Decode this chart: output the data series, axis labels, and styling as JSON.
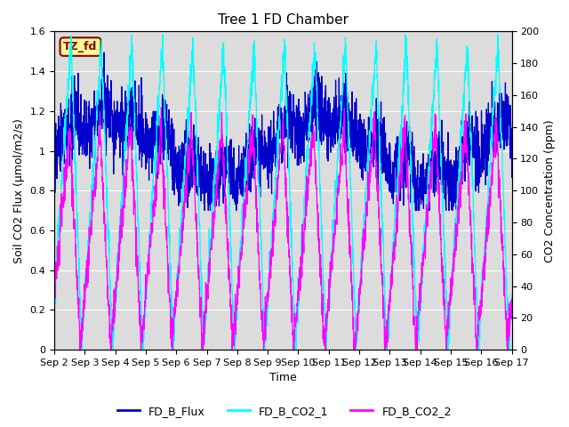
{
  "title": "Tree 1 FD Chamber",
  "xlabel": "Time",
  "ylabel_left": "Soil CO2 Flux (μmol/m2/s)",
  "ylabel_right": "CO2 Concentration (ppm)",
  "ylim_left": [
    0,
    1.6
  ],
  "ylim_right": [
    0,
    200
  ],
  "yticks_left": [
    0.0,
    0.2,
    0.4,
    0.6,
    0.8,
    1.0,
    1.2,
    1.4,
    1.6
  ],
  "yticks_right": [
    0,
    20,
    40,
    60,
    80,
    100,
    120,
    140,
    160,
    180,
    200
  ],
  "xticklabels": [
    "Sep 2",
    "Sep 3",
    "Sep 4",
    "Sep 5",
    "Sep 6",
    "Sep 7",
    "Sep 8",
    "Sep 9",
    "Sep 10",
    "Sep 11",
    "Sep 12",
    "Sep 13",
    "Sep 14",
    "Sep 15",
    "Sep 16",
    "Sep 17"
  ],
  "flux_color": "#0000CC",
  "co2_1_color": "#00FFFF",
  "co2_2_color": "#FF00FF",
  "bg_color": "#DCDCDC",
  "fig_bg_color": "#FFFFFF",
  "legend_labels": [
    "FD_B_Flux",
    "FD_B_CO2_1",
    "FD_B_CO2_2"
  ],
  "tz_label": "TZ_fd",
  "tz_bg": "#FFFF99",
  "tz_border": "#8B0000",
  "title_fontsize": 11,
  "label_fontsize": 9,
  "tick_fontsize": 8,
  "legend_fontsize": 9,
  "n_days": 15,
  "n_points_per_day": 144
}
